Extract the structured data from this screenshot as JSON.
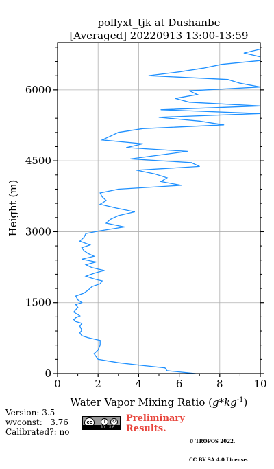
{
  "chart_data": {
    "type": "line",
    "title": "pollyxt_tjk at Dushanbe",
    "subtitle": "[Averaged] 20220913 13:00-13:59",
    "xlabel_main": "Water Vapor Mixing Ratio (",
    "xlabel_unit": "g*kg",
    "xlabel_exp": "-1",
    "xlabel_close": ")",
    "ylabel": "Height (m)",
    "xlim": [
      0,
      10
    ],
    "ylim": [
      0,
      7000
    ],
    "xticks": [
      0,
      2,
      4,
      6,
      8,
      10
    ],
    "yticks": [
      0,
      1500,
      3000,
      4500,
      6000
    ],
    "grid": true,
    "color": "#1e90ff",
    "series": [
      {
        "y": [
          0,
          60,
          120,
          180,
          230,
          300,
          360,
          420,
          500,
          600,
          700,
          760,
          800,
          860,
          920,
          1000,
          1060,
          1100,
          1140,
          1180,
          1220,
          1300,
          1400,
          1460,
          1500,
          1560,
          1640,
          1700,
          1760,
          1840,
          1900,
          1960,
          2000,
          2060,
          2120,
          2180,
          2240,
          2300,
          2360,
          2420,
          2480,
          2540,
          2600,
          2660,
          2720,
          2800,
          2880,
          2960,
          3020,
          3100,
          3180,
          3260,
          3340,
          3420,
          3500,
          3580,
          3660,
          3740,
          3820,
          3900,
          3980,
          4060,
          4140,
          4220,
          4300,
          4380,
          4460,
          4540,
          4620,
          4700,
          4780,
          4860,
          4940,
          5020,
          5100,
          5180,
          5260,
          5340,
          5420,
          5500,
          5580,
          5660,
          5740,
          5820,
          5900,
          5980,
          6060,
          6140,
          6220,
          6300,
          6380,
          6460,
          6540,
          6620,
          6700,
          6780,
          6860,
          6940
        ],
        "x": [
          6.8,
          5.4,
          5.3,
          4.0,
          3.0,
          2.0,
          1.9,
          1.8,
          2.0,
          2.1,
          2.1,
          1.5,
          1.2,
          1.1,
          1.2,
          1.1,
          1.2,
          0.9,
          0.8,
          0.9,
          1.1,
          0.8,
          1.0,
          0.9,
          1.2,
          1.0,
          0.9,
          1.3,
          1.5,
          1.7,
          2.1,
          2.2,
          1.8,
          1.4,
          1.8,
          2.3,
          1.7,
          1.4,
          1.9,
          1.2,
          1.8,
          1.5,
          1.3,
          1.2,
          1.6,
          1.1,
          1.3,
          1.4,
          2.1,
          3.3,
          2.4,
          2.6,
          3.0,
          3.8,
          2.9,
          2.1,
          2.4,
          2.2,
          2.1,
          3.0,
          6.1,
          5.1,
          5.4,
          4.8,
          3.9,
          7.0,
          6.6,
          3.6,
          5.0,
          6.4,
          3.4,
          4.2,
          2.2,
          2.6,
          3.0,
          4.2,
          8.2,
          7.0,
          5.0,
          10.0,
          5.1,
          10.0,
          6.5,
          5.8,
          6.9,
          6.5,
          10.0,
          9.0,
          8.4,
          4.5,
          6.0,
          7.2,
          8.1,
          10.0,
          10.0,
          9.2,
          10.0,
          10.0
        ]
      }
    ]
  },
  "footer": {
    "version": "Version: 3.5",
    "wvconst": "wvconst:   3.76",
    "calibrated": "Calibrated?: no",
    "preliminary_line1": "Preliminary",
    "preliminary_line2": "Results.",
    "copyright_line1": "© TROPOS 2022.",
    "copyright_line2": "CC BY SA 4.0 License.",
    "license_badge_cc": "cc",
    "license_badge_text": "BY SA"
  }
}
